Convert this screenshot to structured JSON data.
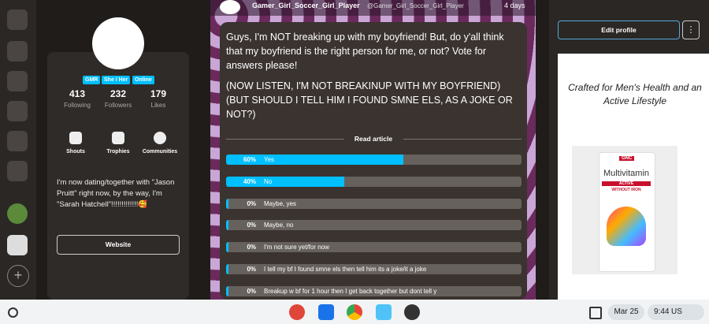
{
  "profile": {
    "badges": [
      "GMR",
      "She / Her",
      "Online"
    ],
    "stats": [
      {
        "value": 413,
        "label": "Following"
      },
      {
        "value": 232,
        "label": "Followers"
      },
      {
        "value": 179,
        "label": "Likes"
      }
    ],
    "actions": [
      "Shouts",
      "Trophies",
      "Communities"
    ],
    "bio": "I'm now dating/together with \"Jason Pruitt\" right now, by the way, I'm \"Sarah Hatchell\"!!!!!!!!!!!!!🥰",
    "website": "Website"
  },
  "post": {
    "author": "Gamer_Girl_Soccer_Girl_Player",
    "handle": "@Gamer_Girl_Soccer_Girl_Player",
    "time": "4 days",
    "paragraphs": [
      "Guys, I'm NOT breaking up with my boyfriend! But, do y'all think that my boyfriend is the right person for me, or not? Vote for answers please!",
      "(NOW LISTEN, I'M NOT  BREAKINUP WITH MY BOYFRIEND) (BUT SHOULD I TELL HIM I FOUND SMNE ELS, AS A JOKE OR NOT?)"
    ],
    "read_article": "Read article"
  },
  "poll": {
    "options": [
      {
        "label": "Yes",
        "percent": 60,
        "percent_label": "60%"
      },
      {
        "label": "No",
        "percent": 40,
        "percent_label": "40%"
      },
      {
        "label": "Maybe, yes",
        "percent": 0,
        "percent_label": "0%"
      },
      {
        "label": "Maybe, no",
        "percent": 0,
        "percent_label": "0%"
      },
      {
        "label": "I'm not sure yet/for now",
        "percent": 0,
        "percent_label": "0%"
      },
      {
        "label": "I tell my bf I found smne els then tell him its a joke/it a joke",
        "percent": 0,
        "percent_label": "0%"
      },
      {
        "label": "Breakup w bf for 1 hour then I get back together but dont tell y",
        "percent": 0,
        "percent_label": "0%"
      }
    ]
  },
  "sidebar_right": {
    "edit_profile": "Edit profile",
    "more": "⋮",
    "ad": {
      "headline": "Crafted for Men's Health and an Active Lifestyle",
      "brand": "GNC",
      "product": "Multivitamin",
      "line": "ACTIVE",
      "note": "WITHOUT IRON"
    }
  },
  "taskbar": {
    "date": "Mar 25",
    "time": "9:44",
    "locale": "US"
  }
}
